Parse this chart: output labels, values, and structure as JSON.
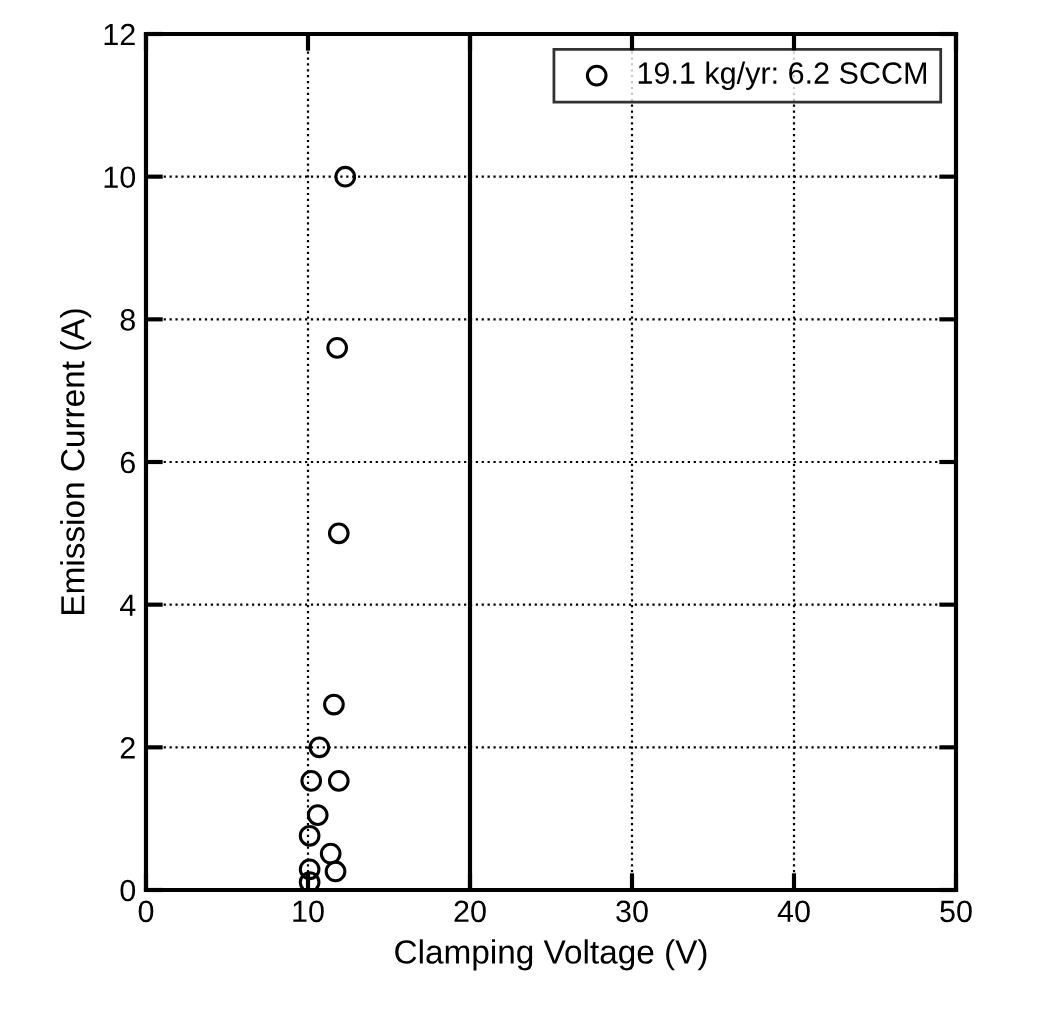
{
  "chart_data": {
    "type": "scatter",
    "xlabel": "Clamping Voltage (V)",
    "ylabel": "Emission Current (A)",
    "xlim": [
      0,
      50
    ],
    "ylim": [
      0,
      12
    ],
    "xticks": [
      0,
      10,
      20,
      30,
      40,
      50
    ],
    "yticks": [
      0,
      2,
      4,
      6,
      8,
      10,
      12
    ],
    "grid": true,
    "legend": "top right",
    "marker": "circle",
    "ref_lines": [
      {
        "axis": "x",
        "value": 20,
        "color": "#000000",
        "line_style": "solid"
      }
    ],
    "series": [
      {
        "name": "19.1 kg/yr: 6.2 SCCM",
        "color": "#000000",
        "x": [
          12.3,
          11.8,
          11.9,
          11.6,
          10.7,
          10.2,
          11.9,
          10.6,
          10.1,
          11.4,
          10.1,
          11.7,
          10.1
        ],
        "values": [
          10.0,
          7.6,
          5.0,
          2.6,
          2.0,
          1.53,
          1.53,
          1.05,
          0.76,
          0.51,
          0.29,
          0.26,
          0.11
        ]
      }
    ]
  }
}
